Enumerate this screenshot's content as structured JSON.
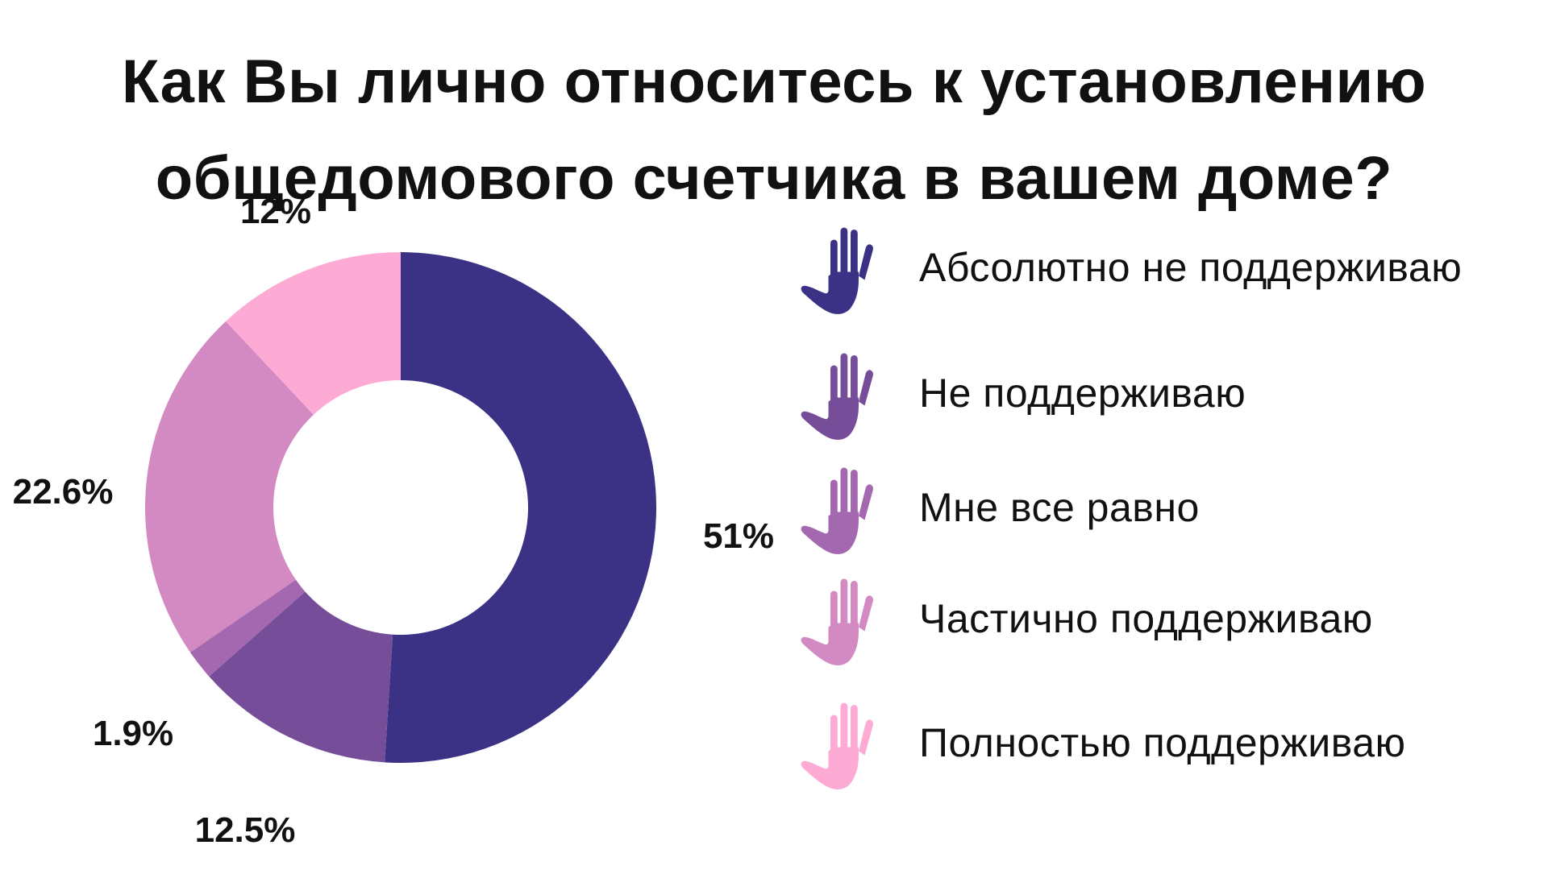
{
  "chart_data": {
    "type": "pie",
    "title_lines": [
      "Как Вы лично относитесь к установлению",
      "общедомового счетчика в вашем доме?"
    ],
    "donut": true,
    "slices": [
      {
        "name": "Абсолютно не поддерживаю",
        "value": 51,
        "label": "51%",
        "color": "#3b3285"
      },
      {
        "name": "Не поддерживаю",
        "value": 12.5,
        "label": "12.5%",
        "color": "#754d99"
      },
      {
        "name": "Мне все равно",
        "value": 1.9,
        "label": "1.9%",
        "color": "#a468b0"
      },
      {
        "name": "Частично поддерживаю",
        "value": 22.6,
        "label": "22.6%",
        "color": "#d389c1"
      },
      {
        "name": "Полностью поддерживаю",
        "value": 12,
        "label": "12%",
        "color": "#fdaad5"
      }
    ],
    "legend": {
      "placement": "right",
      "icon": "raised-hand-icon",
      "labels": [
        "Абсолютно не поддерживаю",
        "Не поддерживаю",
        "Мне все равно",
        "Частично поддерживаю",
        "Полностью поддерживаю"
      ]
    }
  }
}
